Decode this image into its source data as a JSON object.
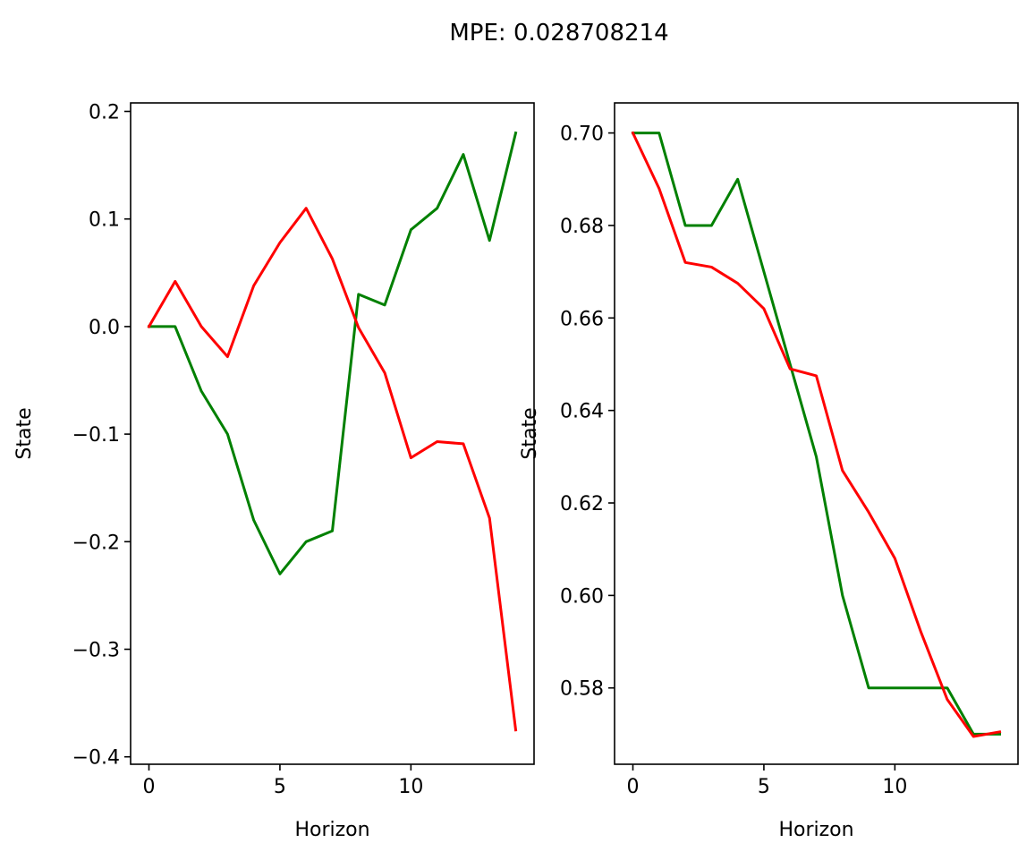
{
  "figure": {
    "title": "MPE: 0.028708214"
  },
  "chart_data": [
    {
      "type": "line",
      "title": "",
      "xlabel": "Horizon",
      "ylabel": "State",
      "xlim": [
        -0.7,
        14.7
      ],
      "ylim": [
        -0.4069,
        0.2079
      ],
      "xticks": [
        0,
        5,
        10
      ],
      "xtick_labels": [
        "0",
        "5",
        "10"
      ],
      "yticks": [
        -0.4,
        -0.3,
        -0.2,
        -0.1,
        0.0,
        0.1,
        0.2
      ],
      "ytick_labels": [
        "−0.4",
        "−0.3",
        "−0.2",
        "−0.1",
        "0.0",
        "0.1",
        "0.2"
      ],
      "grid": false,
      "x": [
        0,
        1,
        2,
        3,
        4,
        5,
        6,
        7,
        8,
        9,
        10,
        11,
        12,
        13,
        14
      ],
      "series": [
        {
          "color": "#008000",
          "values": [
            0.0,
            0.0,
            -0.06,
            -0.1,
            -0.18,
            -0.23,
            -0.2,
            -0.19,
            0.03,
            0.02,
            0.09,
            0.11,
            0.16,
            0.08,
            0.18
          ]
        },
        {
          "color": "#ff0000",
          "values": [
            0.0,
            0.042,
            0.0,
            -0.028,
            0.038,
            0.078,
            0.11,
            0.063,
            -0.001,
            -0.043,
            -0.122,
            -0.107,
            -0.109,
            -0.178,
            -0.375
          ]
        }
      ]
    },
    {
      "type": "line",
      "title": "",
      "xlabel": "Horizon",
      "ylabel": "State",
      "xlim": [
        -0.7,
        14.7
      ],
      "ylim": [
        0.5635,
        0.7065
      ],
      "xticks": [
        0,
        5,
        10
      ],
      "xtick_labels": [
        "0",
        "5",
        "10"
      ],
      "yticks": [
        0.58,
        0.6,
        0.62,
        0.64,
        0.66,
        0.68,
        0.7
      ],
      "ytick_labels": [
        "0.58",
        "0.60",
        "0.62",
        "0.64",
        "0.66",
        "0.68",
        "0.70"
      ],
      "grid": false,
      "x": [
        0,
        1,
        2,
        3,
        4,
        5,
        6,
        7,
        8,
        9,
        10,
        11,
        12,
        13,
        14
      ],
      "series": [
        {
          "color": "#008000",
          "values": [
            0.7,
            0.7,
            0.68,
            0.68,
            0.69,
            0.67,
            0.65,
            0.63,
            0.6,
            0.58,
            0.58,
            0.58,
            0.58,
            0.57,
            0.57
          ]
        },
        {
          "color": "#ff0000",
          "values": [
            0.7,
            0.688,
            0.672,
            0.671,
            0.6675,
            0.662,
            0.649,
            0.6475,
            0.627,
            0.618,
            0.608,
            0.592,
            0.5775,
            0.5695,
            0.5705
          ]
        }
      ]
    }
  ]
}
